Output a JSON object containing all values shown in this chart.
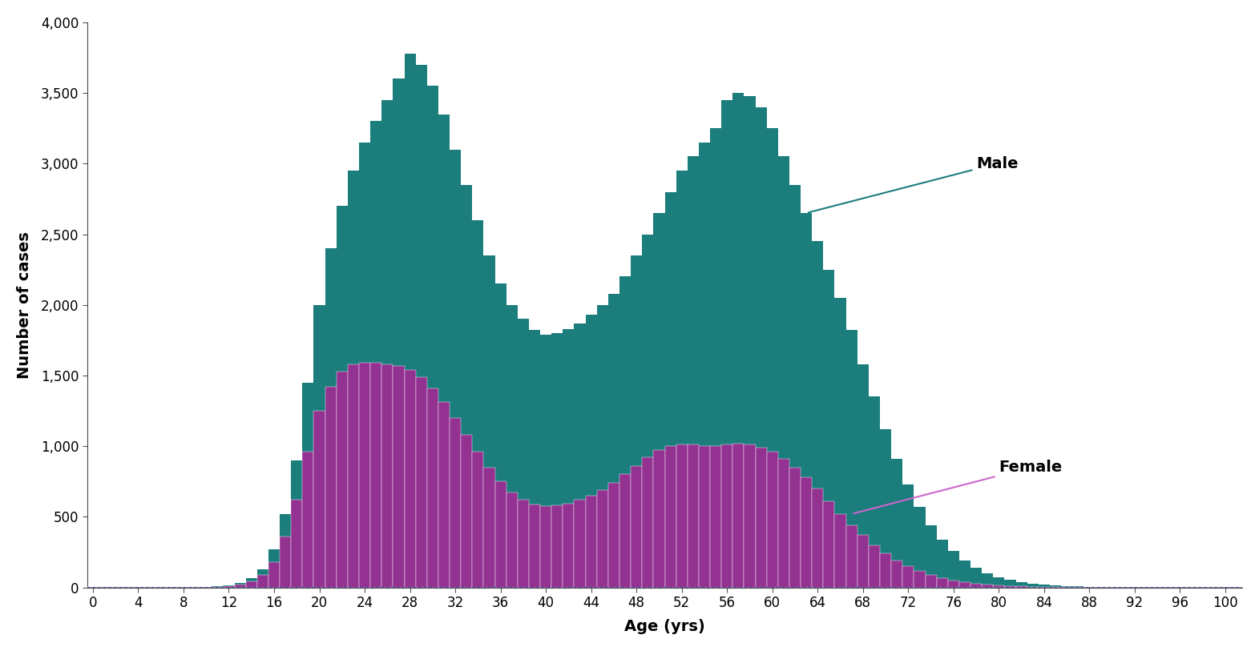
{
  "title": "",
  "xlabel": "Age (yrs)",
  "ylabel": "Number of cases",
  "male_color": "#1c7d7d",
  "female_color": "#943292",
  "female_edge_color": "#cc66cc",
  "background_color": "#ffffff",
  "ylim": [
    0,
    4000
  ],
  "xlim": [
    -0.5,
    101.5
  ],
  "yticks": [
    0,
    500,
    1000,
    1500,
    2000,
    2500,
    3000,
    3500,
    4000
  ],
  "xticks": [
    0,
    4,
    8,
    12,
    16,
    20,
    24,
    28,
    32,
    36,
    40,
    44,
    48,
    52,
    56,
    60,
    64,
    68,
    72,
    76,
    80,
    84,
    88,
    92,
    96,
    100
  ],
  "male_values": [
    4,
    2,
    1,
    1,
    1,
    1,
    1,
    1,
    2,
    2,
    5,
    8,
    15,
    30,
    65,
    130,
    270,
    520,
    900,
    1450,
    2000,
    2400,
    2700,
    2950,
    3150,
    3300,
    3450,
    3600,
    3780,
    3700,
    3550,
    3350,
    3100,
    2850,
    2600,
    2350,
    2150,
    2000,
    1900,
    1820,
    1790,
    1800,
    1830,
    1870,
    1930,
    2000,
    2080,
    2200,
    2350,
    2500,
    2650,
    2800,
    2950,
    3050,
    3150,
    3250,
    3450,
    3500,
    3480,
    3400,
    3250,
    3050,
    2850,
    2650,
    2450,
    2250,
    2050,
    1820,
    1580,
    1350,
    1120,
    910,
    730,
    570,
    440,
    340,
    260,
    190,
    140,
    100,
    72,
    52,
    38,
    27,
    20,
    14,
    10,
    8,
    6,
    5,
    4,
    3,
    3,
    2,
    2,
    2,
    2,
    2,
    2,
    2,
    2,
    3
  ],
  "female_values": [
    2,
    1,
    1,
    1,
    1,
    1,
    1,
    1,
    1,
    1,
    3,
    5,
    10,
    20,
    45,
    90,
    180,
    360,
    620,
    960,
    1250,
    1420,
    1530,
    1580,
    1590,
    1590,
    1580,
    1570,
    1540,
    1490,
    1410,
    1310,
    1200,
    1080,
    960,
    850,
    750,
    670,
    620,
    590,
    575,
    580,
    595,
    620,
    650,
    690,
    740,
    800,
    860,
    920,
    970,
    1000,
    1010,
    1010,
    1000,
    1000,
    1010,
    1020,
    1010,
    990,
    960,
    910,
    850,
    780,
    700,
    610,
    520,
    440,
    370,
    300,
    240,
    190,
    150,
    115,
    87,
    65,
    48,
    35,
    26,
    18,
    13,
    9,
    7,
    5,
    4,
    3,
    2,
    2,
    1,
    1,
    1,
    1,
    1,
    1,
    1,
    1,
    1,
    1,
    1,
    1,
    1,
    2
  ]
}
